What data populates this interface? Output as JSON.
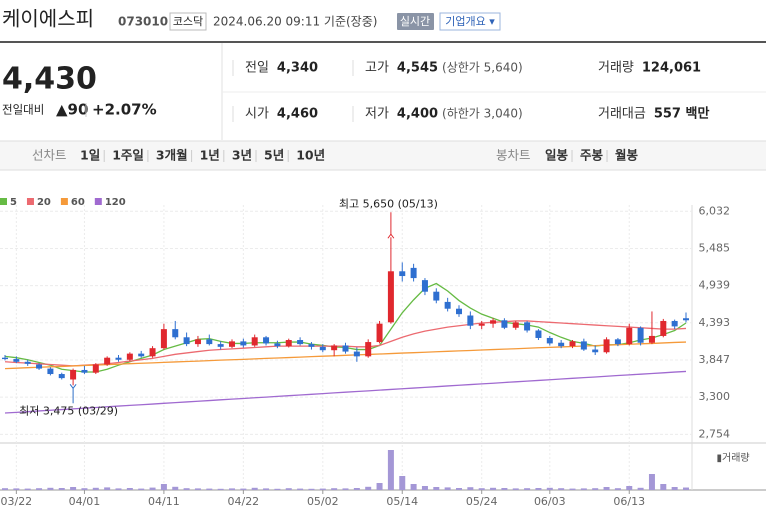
{
  "header": {
    "name": "케이에스피",
    "code": "073010",
    "market": "코스닥",
    "timestamp": "2024.06.20 09:11 기준(장중)",
    "realtime": "실시간",
    "company_menu": "기업개요 ▾"
  },
  "quote": {
    "price": "4,430",
    "change_label": "전일대비",
    "change": "▲90",
    "change_rate": "+2.07%",
    "color": "#e0282e",
    "fields": [
      {
        "label": "전일",
        "value": "4,340",
        "color": "#222"
      },
      {
        "label": "고가",
        "value": "4,545",
        "note": "(상한가 5,640)",
        "color": "#e0282e"
      },
      {
        "label": "거래량",
        "value": "124,061",
        "color": "#222"
      },
      {
        "label": "시가",
        "value": "4,460",
        "color": "#e0282e"
      },
      {
        "label": "저가",
        "value": "4,400",
        "note": "(하한가 3,040)",
        "color": "#e0282e"
      },
      {
        "label": "거래대금",
        "value": "557 백만",
        "color": "#222"
      }
    ]
  },
  "tabs": {
    "line_label": "선차트",
    "line": [
      "1일",
      "1주일",
      "3개월",
      "1년",
      "3년",
      "5년",
      "10년"
    ],
    "candle_label": "봉차트",
    "candle": [
      "일봉",
      "주봉",
      "월봉"
    ],
    "selected": "일봉"
  },
  "chart_data": {
    "type": "candlestick",
    "categories": [
      null,
      "03/22",
      null,
      null,
      null,
      null,
      null,
      "04/01",
      null,
      null,
      null,
      null,
      null,
      null,
      "04/11",
      null,
      null,
      null,
      null,
      null,
      null,
      "04/22",
      null,
      null,
      null,
      null,
      null,
      null,
      "05/02",
      null,
      null,
      null,
      null,
      null,
      null,
      "05/14",
      null,
      null,
      null,
      null,
      null,
      null,
      "05/24",
      null,
      null,
      null,
      null,
      null,
      "06/03",
      null,
      null,
      null,
      null,
      null,
      null,
      "06/13",
      null,
      null,
      null,
      null,
      null
    ],
    "open": [
      3880,
      3860,
      3820,
      3780,
      3720,
      3640,
      3560,
      3700,
      3660,
      3780,
      3880,
      3850,
      3940,
      3900,
      4020,
      4300,
      4180,
      4080,
      4150,
      4080,
      4040,
      4120,
      4060,
      4180,
      4090,
      4050,
      4140,
      4080,
      4040,
      3990,
      4060,
      3970,
      3900,
      4110,
      4400,
      5150,
      5200,
      5020,
      4850,
      4700,
      4600,
      4500,
      4350,
      4380,
      4430,
      4320,
      4400,
      4280,
      4170,
      4100,
      4050,
      4120,
      4000,
      3960,
      4150,
      4080,
      4320,
      4100,
      4200,
      4420,
      4460
    ],
    "high": [
      3920,
      3900,
      3850,
      3800,
      3740,
      3660,
      3720,
      3760,
      3800,
      3900,
      3920,
      3960,
      3980,
      4050,
      4380,
      4420,
      4250,
      4200,
      4220,
      4120,
      4150,
      4160,
      4220,
      4200,
      4130,
      4160,
      4180,
      4110,
      4080,
      4080,
      4100,
      4030,
      4150,
      4420,
      5650,
      5280,
      5260,
      5050,
      4900,
      4760,
      4650,
      4560,
      4420,
      4460,
      4460,
      4420,
      4420,
      4300,
      4200,
      4140,
      4140,
      4160,
      4060,
      4180,
      4170,
      4380,
      4340,
      4560,
      4450,
      4440,
      4545
    ],
    "low": [
      3840,
      3800,
      3760,
      3700,
      3620,
      3560,
      3475,
      3640,
      3640,
      3760,
      3820,
      3830,
      3880,
      3880,
      4000,
      4150,
      4050,
      4040,
      4060,
      4000,
      4020,
      4030,
      4040,
      4060,
      4020,
      4030,
      4060,
      4000,
      3960,
      3900,
      3940,
      3820,
      3880,
      4090,
      4380,
      5000,
      5000,
      4800,
      4680,
      4560,
      4480,
      4300,
      4300,
      4320,
      4300,
      4290,
      4250,
      4140,
      4060,
      4020,
      4020,
      3980,
      3920,
      3940,
      4050,
      4060,
      4060,
      4080,
      4180,
      4300,
      4400
    ],
    "close": [
      3860,
      3820,
      3790,
      3720,
      3640,
      3580,
      3700,
      3660,
      3780,
      3880,
      3850,
      3940,
      3900,
      4020,
      4300,
      4180,
      4080,
      4150,
      4080,
      4040,
      4120,
      4060,
      4180,
      4090,
      4050,
      4140,
      4080,
      4040,
      3990,
      4060,
      3970,
      3900,
      4110,
      4380,
      5150,
      5080,
      5050,
      4850,
      4720,
      4600,
      4520,
      4350,
      4380,
      4430,
      4320,
      4400,
      4280,
      4170,
      4090,
      4050,
      4120,
      4000,
      3960,
      4150,
      4080,
      4320,
      4100,
      4200,
      4420,
      4340,
      4430
    ],
    "volume": [
      90000,
      80000,
      70000,
      90000,
      110000,
      100000,
      150000,
      90000,
      110000,
      130000,
      80000,
      100000,
      70000,
      120000,
      300000,
      160000,
      90000,
      80000,
      70000,
      60000,
      80000,
      70000,
      110000,
      80000,
      60000,
      90000,
      70000,
      60000,
      70000,
      90000,
      80000,
      100000,
      160000,
      350000,
      2000000,
      700000,
      300000,
      200000,
      150000,
      130000,
      100000,
      140000,
      90000,
      110000,
      100000,
      80000,
      90000,
      100000,
      110000,
      90000,
      70000,
      80000,
      90000,
      150000,
      90000,
      200000,
      110000,
      800000,
      300000,
      150000,
      124061
    ],
    "up_color": "#e0282e",
    "down_color": "#2e6fd0",
    "volume_color": "#a497d6",
    "volume_label": "거래량",
    "ylim": [
      2700,
      6080
    ],
    "yticks": [
      {
        "value": 6032,
        "label": "6,032"
      },
      {
        "value": 5485,
        "label": "5,485"
      },
      {
        "value": 4939,
        "label": "4,939"
      },
      {
        "value": 4393,
        "label": "4,393"
      },
      {
        "value": 3847,
        "label": "3,847"
      },
      {
        "value": 3300,
        "label": "3,300"
      },
      {
        "value": 2754,
        "label": "2,754"
      }
    ],
    "vlim": [
      0,
      2100000
    ],
    "grid": true,
    "moving_averages": [
      {
        "name": "5",
        "color": "#66bb44",
        "values": [
          3900,
          3880,
          3850,
          3810,
          3770,
          3710,
          3690,
          3670,
          3670,
          3710,
          3770,
          3820,
          3870,
          3920,
          4000,
          4050,
          4100,
          4150,
          4160,
          4120,
          4090,
          4090,
          4100,
          4100,
          4100,
          4110,
          4110,
          4080,
          4060,
          4040,
          4030,
          4000,
          4000,
          4060,
          4300,
          4540,
          4730,
          4900,
          4970,
          4860,
          4720,
          4610,
          4520,
          4460,
          4400,
          4380,
          4360,
          4330,
          4250,
          4180,
          4120,
          4090,
          4050,
          4070,
          4070,
          4100,
          4140,
          4170,
          4220,
          4280,
          4390
        ]
      },
      {
        "name": "20",
        "color": "#ec6a70",
        "values": [
          3820,
          3810,
          3800,
          3790,
          3780,
          3770,
          3760,
          3770,
          3780,
          3790,
          3810,
          3830,
          3850,
          3870,
          3900,
          3930,
          3950,
          3970,
          3990,
          4000,
          4010,
          4020,
          4030,
          4040,
          4050,
          4050,
          4050,
          4050,
          4050,
          4050,
          4050,
          4040,
          4040,
          4060,
          4120,
          4180,
          4230,
          4270,
          4300,
          4330,
          4350,
          4370,
          4390,
          4400,
          4410,
          4420,
          4420,
          4410,
          4400,
          4390,
          4380,
          4370,
          4360,
          4350,
          4340,
          4330,
          4320,
          4310,
          4300,
          4300,
          4310
        ]
      },
      {
        "name": "60",
        "color": "#f59a3a",
        "values": [
          3720,
          3726,
          3733,
          3740,
          3746,
          3752,
          3759,
          3766,
          3772,
          3778,
          3785,
          3792,
          3798,
          3804,
          3811,
          3818,
          3824,
          3830,
          3837,
          3844,
          3850,
          3856,
          3863,
          3870,
          3876,
          3882,
          3889,
          3896,
          3902,
          3908,
          3915,
          3922,
          3928,
          3934,
          3941,
          3948,
          3954,
          3960,
          3967,
          3974,
          3980,
          3986,
          3993,
          4000,
          4006,
          4012,
          4019,
          4026,
          4032,
          4038,
          4045,
          4052,
          4058,
          4064,
          4071,
          4078,
          4084,
          4090,
          4097,
          4104,
          4110
        ]
      },
      {
        "name": "120",
        "color": "#a06ad0",
        "values": [
          3067,
          3077,
          3087,
          3098,
          3108,
          3118,
          3128,
          3138,
          3148,
          3159,
          3169,
          3179,
          3189,
          3199,
          3210,
          3220,
          3230,
          3240,
          3250,
          3261,
          3271,
          3281,
          3291,
          3301,
          3312,
          3322,
          3332,
          3342,
          3352,
          3363,
          3373,
          3383,
          3393,
          3403,
          3414,
          3424,
          3434,
          3444,
          3454,
          3465,
          3475,
          3485,
          3495,
          3505,
          3516,
          3526,
          3536,
          3546,
          3556,
          3567,
          3577,
          3587,
          3597,
          3607,
          3618,
          3628,
          3638,
          3648,
          3658,
          3669,
          3678
        ]
      }
    ],
    "annotations": [
      {
        "text": "최고 5,650 (05/13)",
        "value": 5650,
        "color": "#e0282e"
      },
      {
        "text": "최저 3,475 (03/29)",
        "value": 3475,
        "color": "#2e6fc7"
      }
    ]
  }
}
